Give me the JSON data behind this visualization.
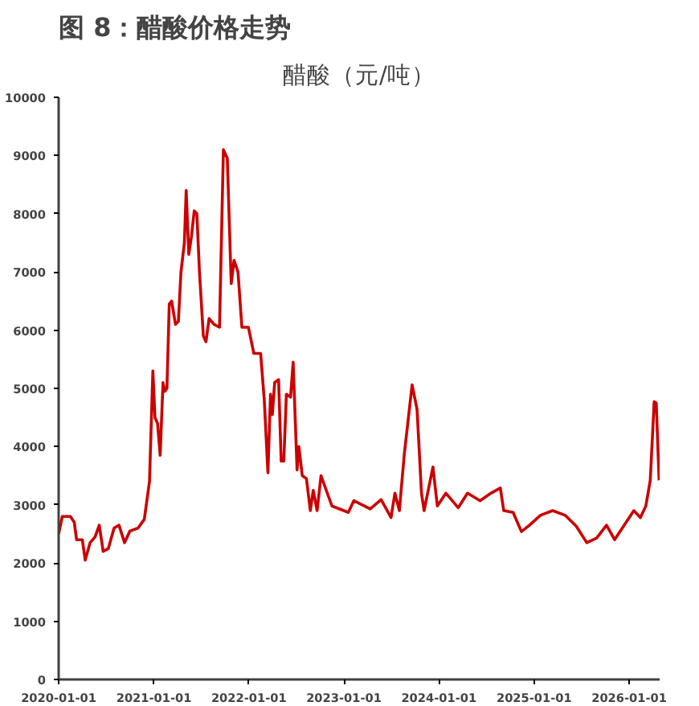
{
  "chart_data": {
    "type": "line",
    "title": "图 8：醋酸价格走势",
    "subtitle": "醋酸（元/吨）",
    "x": [
      "2020-01-01",
      "2020-01-15",
      "2020-02-15",
      "2020-03-01",
      "2020-03-10",
      "2020-04-01",
      "2020-04-12",
      "2020-05-01",
      "2020-05-20",
      "2020-06-05",
      "2020-06-20",
      "2020-07-10",
      "2020-08-01",
      "2020-08-20",
      "2020-09-10",
      "2020-10-01",
      "2020-11-01",
      "2020-11-25",
      "2020-12-15",
      "2020-12-28",
      "2021-01-05",
      "2021-01-15",
      "2021-01-25",
      "2021-02-05",
      "2021-02-12",
      "2021-02-20",
      "2021-03-01",
      "2021-03-10",
      "2021-03-25",
      "2021-04-05",
      "2021-04-15",
      "2021-04-28",
      "2021-05-05",
      "2021-05-15",
      "2021-05-25",
      "2021-06-05",
      "2021-06-15",
      "2021-06-25",
      "2021-07-10",
      "2021-07-20",
      "2021-08-01",
      "2021-08-20",
      "2021-09-10",
      "2021-09-25",
      "2021-10-10",
      "2021-10-25",
      "2021-11-05",
      "2021-11-20",
      "2021-12-05",
      "2021-12-30",
      "2022-01-20",
      "2022-02-15",
      "2022-03-01",
      "2022-03-15",
      "2022-03-25",
      "2022-04-01",
      "2022-04-10",
      "2022-04-25",
      "2022-05-05",
      "2022-05-15",
      "2022-05-25",
      "2022-06-10",
      "2022-06-20",
      "2022-07-05",
      "2022-07-12",
      "2022-07-25",
      "2022-08-10",
      "2022-08-25",
      "2022-09-05",
      "2022-09-20",
      "2022-10-05",
      "2022-11-16",
      "2023-01-18",
      "2023-02-08",
      "2023-04-12",
      "2023-05-24",
      "2023-07-01",
      "2023-07-16",
      "2023-08-02",
      "2023-08-21",
      "2023-09-20",
      "2023-10-09",
      "2023-10-26",
      "2023-11-05",
      "2023-12-09",
      "2023-12-26",
      "2024-01-28",
      "2024-03-15",
      "2024-04-20",
      "2024-06-07",
      "2024-07-19",
      "2024-08-24",
      "2024-09-06",
      "2024-10-12",
      "2024-11-13",
      "2024-12-14",
      "2025-01-25",
      "2025-03-13",
      "2025-04-30",
      "2025-06-12",
      "2025-07-22",
      "2025-08-29",
      "2025-10-06",
      "2025-11-06",
      "2026-01-19",
      "2026-02-13",
      "2026-03-06",
      "2026-03-23",
      "2026-04-07",
      "2026-04-15",
      "2026-04-26"
    ],
    "series": [
      {
        "color": "#cc0000",
        "values": [
          2500,
          2800,
          2800,
          2700,
          2400,
          2400,
          2050,
          2350,
          2450,
          2650,
          2200,
          2250,
          2600,
          2650,
          2350,
          2550,
          2600,
          2750,
          3400,
          5300,
          4500,
          4400,
          3850,
          5100,
          4950,
          5000,
          6450,
          6500,
          6100,
          6150,
          7000,
          7500,
          8400,
          7300,
          7600,
          8050,
          8000,
          7000,
          5900,
          5800,
          6200,
          6100,
          6050,
          9100,
          8950,
          6800,
          7200,
          7000,
          6050,
          6050,
          5600,
          5600,
          4800,
          3550,
          4900,
          4550,
          5100,
          5150,
          3750,
          3750,
          4900,
          4850,
          5450,
          3600,
          4000,
          3500,
          3450,
          2900,
          3250,
          2900,
          3500,
          2980,
          2870,
          3070,
          2930,
          3090,
          2780,
          3200,
          2900,
          3870,
          5060,
          4640,
          3200,
          2900,
          3650,
          2980,
          3200,
          2950,
          3200,
          3070,
          3200,
          3290,
          2900,
          2870,
          2540,
          2650,
          2820,
          2900,
          2820,
          2630,
          2350,
          2430,
          2650,
          2400,
          2900,
          2780,
          2980,
          3420,
          4770,
          4750,
          3420
        ]
      }
    ],
    "xlim": [
      "2020-01-01",
      "2026-04-28"
    ],
    "xticks": [
      "2020-01-01",
      "2021-01-01",
      "2022-01-01",
      "2023-01-01",
      "2024-01-01",
      "2025-01-01",
      "2026-01-01"
    ],
    "ylim": [
      0,
      10000
    ],
    "yticks": [
      0,
      1000,
      2000,
      3000,
      4000,
      5000,
      6000,
      7000,
      8000,
      9000,
      10000
    ],
    "grid": false,
    "marker": "none",
    "line_style": "solid"
  }
}
